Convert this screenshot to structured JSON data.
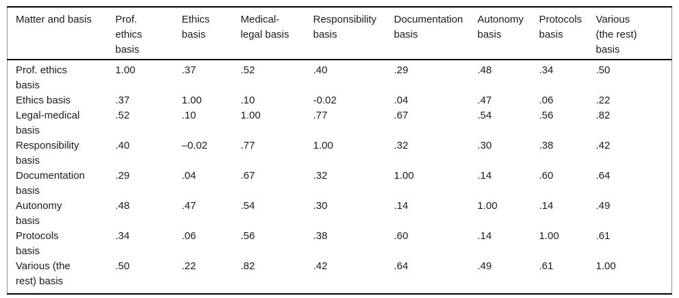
{
  "table": {
    "columns": [
      "Matter and basis",
      "Prof.\nethics\nbasis",
      "Ethics\nbasis",
      "Medical-\nlegal basis",
      "Responsibility\nbasis",
      "Documentation\nbasis",
      "Autonomy\nbasis",
      "Protocols\nbasis",
      "Various\n(the rest)\nbasis"
    ],
    "rows": [
      {
        "label": "Prof. ethics\nbasis",
        "values": [
          "1.00",
          ".37",
          ".52",
          ".40",
          ".29",
          ".48",
          ".34",
          ".50"
        ]
      },
      {
        "label": "Ethics basis",
        "values": [
          ".37",
          "1.00",
          ".10",
          "-0.02",
          ".04",
          ".47",
          ".06",
          ".22"
        ]
      },
      {
        "label": "Legal-medical\nbasis",
        "values": [
          ".52",
          ".10",
          "1.00",
          ".77",
          ".67",
          ".54",
          ".56",
          ".82"
        ]
      },
      {
        "label": "Responsibility\nbasis",
        "values": [
          ".40",
          "–0.02",
          ".77",
          "1.00",
          ".32",
          ".30",
          ".38",
          ".42"
        ]
      },
      {
        "label": "Documentation\nbasis",
        "values": [
          ".29",
          ".04",
          ".67",
          ".32",
          "1.00",
          ".14",
          ".60",
          ".64"
        ]
      },
      {
        "label": "Autonomy\nbasis",
        "values": [
          ".48",
          ".47",
          ".54",
          ".30",
          ".14",
          "1.00",
          ".14",
          ".49"
        ]
      },
      {
        "label": "Protocols\nbasis",
        "values": [
          ".34",
          ".06",
          ".56",
          ".38",
          ".60",
          ".14",
          "1.00",
          ".61"
        ]
      },
      {
        "label": "Various (the\nrest) basis",
        "values": [
          ".50",
          ".22",
          ".82",
          ".42",
          ".64",
          ".49",
          ".61",
          "1.00"
        ]
      }
    ]
  },
  "colors": {
    "background": "#ffffff",
    "text": "#1a1a1a",
    "rule_heavy": "#000000",
    "rule_side": "#909090"
  },
  "chart_data": {
    "type": "table",
    "corner_label": "Matter and basis",
    "column_headers": [
      "Prof. ethics basis",
      "Ethics basis",
      "Medical-legal basis",
      "Responsibility basis",
      "Documentation basis",
      "Autonomy basis",
      "Protocols basis",
      "Various (the rest) basis"
    ],
    "row_headers": [
      "Prof. ethics basis",
      "Ethics basis",
      "Legal-medical basis",
      "Responsibility basis",
      "Documentation basis",
      "Autonomy basis",
      "Protocols basis",
      "Various (the rest) basis"
    ],
    "matrix": [
      [
        1.0,
        0.37,
        0.52,
        0.4,
        0.29,
        0.48,
        0.34,
        0.5
      ],
      [
        0.37,
        1.0,
        0.1,
        -0.02,
        0.04,
        0.47,
        0.06,
        0.22
      ],
      [
        0.52,
        0.1,
        1.0,
        0.77,
        0.67,
        0.54,
        0.56,
        0.82
      ],
      [
        0.4,
        -0.02,
        0.77,
        1.0,
        0.32,
        0.3,
        0.38,
        0.42
      ],
      [
        0.29,
        0.04,
        0.67,
        0.32,
        1.0,
        0.14,
        0.6,
        0.64
      ],
      [
        0.48,
        0.47,
        0.54,
        0.3,
        0.14,
        1.0,
        0.14,
        0.49
      ],
      [
        0.34,
        0.06,
        0.56,
        0.38,
        0.6,
        0.14,
        1.0,
        0.61
      ],
      [
        0.5,
        0.22,
        0.82,
        0.42,
        0.64,
        0.49,
        0.61,
        1.0
      ]
    ]
  }
}
